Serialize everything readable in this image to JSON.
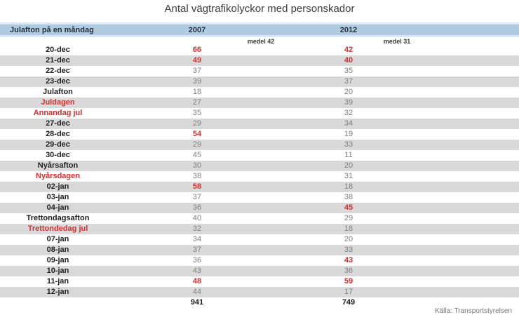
{
  "title": "Antal vägtrafikolyckor med personskador",
  "header": {
    "label": "Julafton på en måndag",
    "year_left": "2007",
    "year_right": "2012"
  },
  "medel": {
    "left": "medel 42",
    "right": "medel 31"
  },
  "rows": [
    {
      "label": "20-dec",
      "label_red": false,
      "v2007": "66",
      "red2007": true,
      "v2012": "42",
      "red2012": true
    },
    {
      "label": "21-dec",
      "label_red": false,
      "v2007": "49",
      "red2007": true,
      "v2012": "40",
      "red2012": true
    },
    {
      "label": "22-dec",
      "label_red": false,
      "v2007": "37",
      "red2007": false,
      "v2012": "35",
      "red2012": false
    },
    {
      "label": "23-dec",
      "label_red": false,
      "v2007": "39",
      "red2007": false,
      "v2012": "37",
      "red2012": false
    },
    {
      "label": "Julafton",
      "label_red": false,
      "v2007": "18",
      "red2007": false,
      "v2012": "20",
      "red2012": false
    },
    {
      "label": "Juldagen",
      "label_red": true,
      "v2007": "27",
      "red2007": false,
      "v2012": "39",
      "red2012": false
    },
    {
      "label": "Annandag jul",
      "label_red": true,
      "v2007": "35",
      "red2007": false,
      "v2012": "32",
      "red2012": false
    },
    {
      "label": "27-dec",
      "label_red": false,
      "v2007": "29",
      "red2007": false,
      "v2012": "34",
      "red2012": false
    },
    {
      "label": "28-dec",
      "label_red": false,
      "v2007": "54",
      "red2007": true,
      "v2012": "19",
      "red2012": false
    },
    {
      "label": "29-dec",
      "label_red": false,
      "v2007": "29",
      "red2007": false,
      "v2012": "33",
      "red2012": false
    },
    {
      "label": "30-dec",
      "label_red": false,
      "v2007": "45",
      "red2007": false,
      "v2012": "11",
      "red2012": false
    },
    {
      "label": "Nyårsafton",
      "label_red": false,
      "v2007": "30",
      "red2007": false,
      "v2012": "20",
      "red2012": false
    },
    {
      "label": "Nyårsdagen",
      "label_red": true,
      "v2007": "38",
      "red2007": false,
      "v2012": "31",
      "red2012": false
    },
    {
      "label": "02-jan",
      "label_red": false,
      "v2007": "58",
      "red2007": true,
      "v2012": "18",
      "red2012": false
    },
    {
      "label": "03-jan",
      "label_red": false,
      "v2007": "37",
      "red2007": false,
      "v2012": "38",
      "red2012": false
    },
    {
      "label": "04-jan",
      "label_red": false,
      "v2007": "36",
      "red2007": false,
      "v2012": "45",
      "red2012": true
    },
    {
      "label": "Trettondagsafton",
      "label_red": false,
      "v2007": "40",
      "red2007": false,
      "v2012": "29",
      "red2012": false
    },
    {
      "label": "Trettondedag jul",
      "label_red": true,
      "v2007": "32",
      "red2007": false,
      "v2012": "18",
      "red2012": false
    },
    {
      "label": "07-jan",
      "label_red": false,
      "v2007": "34",
      "red2007": false,
      "v2012": "20",
      "red2012": false
    },
    {
      "label": "08-jan",
      "label_red": false,
      "v2007": "37",
      "red2007": false,
      "v2012": "33",
      "red2012": false
    },
    {
      "label": "09-jan",
      "label_red": false,
      "v2007": "36",
      "red2007": false,
      "v2012": "43",
      "red2012": true
    },
    {
      "label": "10-jan",
      "label_red": false,
      "v2007": "43",
      "red2007": false,
      "v2012": "36",
      "red2012": false
    },
    {
      "label": "11-jan",
      "label_red": false,
      "v2007": "48",
      "red2007": true,
      "v2012": "59",
      "red2012": true
    },
    {
      "label": "12-jan",
      "label_red": false,
      "v2007": "44",
      "red2007": false,
      "v2012": "17",
      "red2012": false
    }
  ],
  "total": {
    "v2007": "941",
    "v2012": "749"
  },
  "source": "Källa: Transportstyrelsen",
  "colors": {
    "header_blue": "#aecbe2",
    "header_light": "#d9e7f3",
    "stripe": "#d9d9d9",
    "red": "#e02b2b",
    "value_gray": "#7f7f7f"
  },
  "chart_data": {
    "type": "table",
    "title": "Antal vägtrafikolyckor med personskador",
    "columns": [
      "Julafton på en måndag",
      "2007",
      "2012"
    ],
    "categories": [
      "20-dec",
      "21-dec",
      "22-dec",
      "23-dec",
      "Julafton",
      "Juldagen",
      "Annandag jul",
      "27-dec",
      "28-dec",
      "29-dec",
      "30-dec",
      "Nyårsafton",
      "Nyårsdagen",
      "02-jan",
      "03-jan",
      "04-jan",
      "Trettondagsafton",
      "Trettondedag jul",
      "07-jan",
      "08-jan",
      "09-jan",
      "10-jan",
      "11-jan",
      "12-jan"
    ],
    "series": [
      {
        "name": "2007",
        "mean_label": "medel 42",
        "total": 941,
        "values": [
          66,
          49,
          37,
          39,
          18,
          27,
          35,
          29,
          54,
          29,
          45,
          30,
          38,
          58,
          37,
          36,
          40,
          32,
          34,
          37,
          36,
          43,
          48,
          44
        ],
        "highlighted_red_values": [
          66,
          49,
          54,
          58,
          48
        ]
      },
      {
        "name": "2012",
        "mean_label": "medel 31",
        "total": 749,
        "values": [
          42,
          40,
          35,
          37,
          20,
          39,
          32,
          34,
          19,
          33,
          11,
          20,
          31,
          18,
          38,
          45,
          29,
          18,
          20,
          33,
          43,
          36,
          59,
          17
        ],
        "highlighted_red_values": [
          42,
          40,
          45,
          43,
          59
        ]
      }
    ],
    "red_category_labels": [
      "Juldagen",
      "Annandag jul",
      "Nyårsdagen",
      "Trettondedag jul"
    ],
    "source": "Källa: Transportstyrelsen",
    "layout": {
      "striped_rows": true,
      "stripe_parity": "even-rows-gray",
      "header_background": "#aecbe2"
    }
  }
}
